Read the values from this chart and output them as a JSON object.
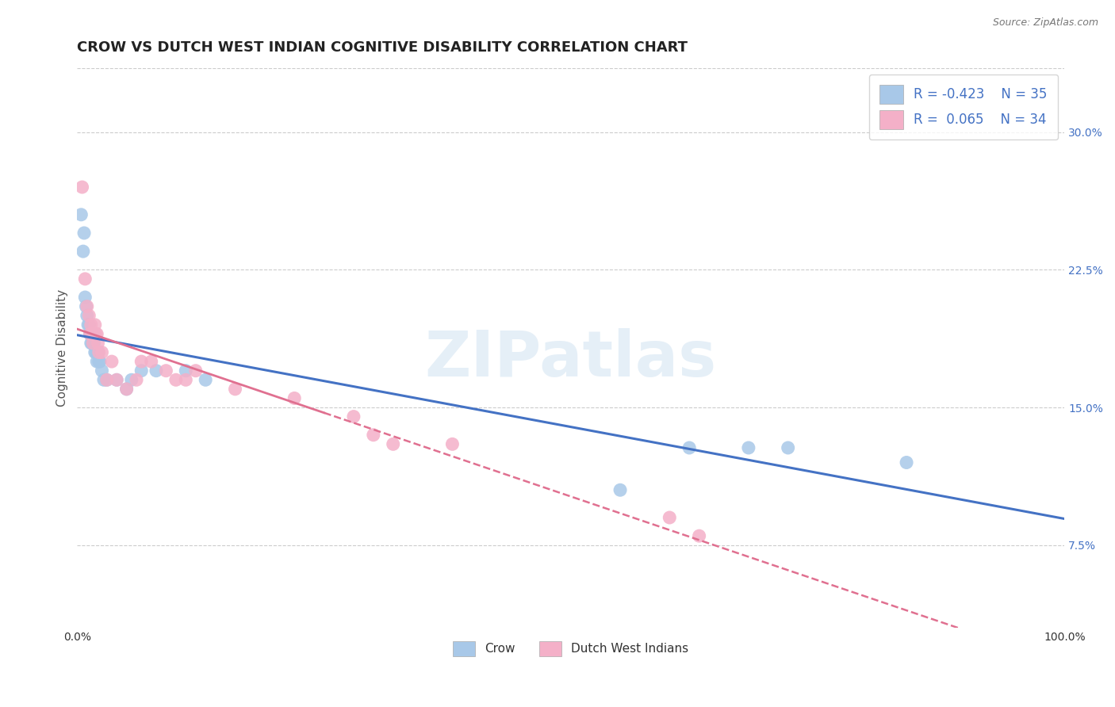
{
  "title": "CROW VS DUTCH WEST INDIAN COGNITIVE DISABILITY CORRELATION CHART",
  "source": "Source: ZipAtlas.com",
  "ylabel": "Cognitive Disability",
  "watermark": "ZIPatlas",
  "crow_R": -0.423,
  "crow_N": 35,
  "dwi_R": 0.065,
  "dwi_N": 34,
  "crow_color": "#a8c8e8",
  "dwi_color": "#f4b0c8",
  "crow_line_color": "#4472c4",
  "dwi_line_color": "#e07090",
  "background_color": "#ffffff",
  "grid_color": "#cccccc",
  "ytick_vals": [
    0.075,
    0.15,
    0.225,
    0.3
  ],
  "ytick_labels": [
    "7.5%",
    "15.0%",
    "22.5%",
    "30.0%"
  ],
  "xlim": [
    0.0,
    1.0
  ],
  "ylim": [
    0.03,
    0.335
  ],
  "crow_x": [
    0.004,
    0.006,
    0.007,
    0.008,
    0.009,
    0.01,
    0.011,
    0.012,
    0.013,
    0.014,
    0.015,
    0.015,
    0.016,
    0.017,
    0.018,
    0.019,
    0.02,
    0.021,
    0.022,
    0.023,
    0.025,
    0.027,
    0.03,
    0.04,
    0.05,
    0.055,
    0.065,
    0.08,
    0.11,
    0.13,
    0.55,
    0.62,
    0.68,
    0.72,
    0.84
  ],
  "crow_y": [
    0.255,
    0.235,
    0.245,
    0.21,
    0.205,
    0.2,
    0.195,
    0.195,
    0.19,
    0.185,
    0.19,
    0.185,
    0.185,
    0.185,
    0.18,
    0.18,
    0.175,
    0.18,
    0.175,
    0.175,
    0.17,
    0.165,
    0.165,
    0.165,
    0.16,
    0.165,
    0.17,
    0.17,
    0.17,
    0.165,
    0.105,
    0.128,
    0.128,
    0.128,
    0.12
  ],
  "dwi_x": [
    0.005,
    0.008,
    0.01,
    0.012,
    0.013,
    0.014,
    0.015,
    0.016,
    0.017,
    0.018,
    0.019,
    0.02,
    0.021,
    0.022,
    0.025,
    0.03,
    0.035,
    0.04,
    0.05,
    0.06,
    0.065,
    0.075,
    0.09,
    0.1,
    0.11,
    0.12,
    0.16,
    0.22,
    0.28,
    0.3,
    0.32,
    0.38,
    0.6,
    0.63
  ],
  "dwi_y": [
    0.27,
    0.22,
    0.205,
    0.2,
    0.19,
    0.195,
    0.19,
    0.185,
    0.19,
    0.195,
    0.19,
    0.19,
    0.185,
    0.18,
    0.18,
    0.165,
    0.175,
    0.165,
    0.16,
    0.165,
    0.175,
    0.175,
    0.17,
    0.165,
    0.165,
    0.17,
    0.16,
    0.155,
    0.145,
    0.135,
    0.13,
    0.13,
    0.09,
    0.08
  ],
  "title_fontsize": 13,
  "label_fontsize": 11,
  "tick_fontsize": 10,
  "legend_fontsize": 12
}
